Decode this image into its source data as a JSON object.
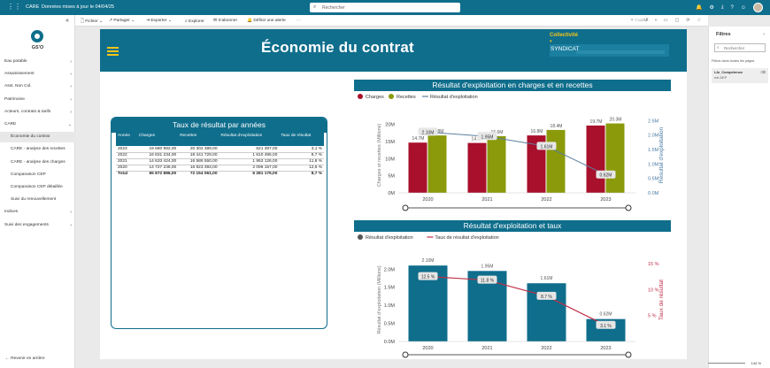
{
  "topbar": {
    "app_name": "CARE",
    "report_title": "Données mises à jour le 04/04/25",
    "search_placeholder": "Rechercher"
  },
  "sidebar": {
    "logo_text": "GS'O",
    "items": [
      {
        "label": "Eau potable",
        "sub": false,
        "chev": "›"
      },
      {
        "label": "Assainissement",
        "sub": false,
        "chev": "›"
      },
      {
        "label": "Asst. Non Col.",
        "sub": false,
        "chev": "›"
      },
      {
        "label": "Patrimoine",
        "sub": false,
        "chev": "›"
      },
      {
        "label": "Acteurs, contrats & tarifs",
        "sub": false,
        "chev": "›"
      },
      {
        "label": "CARE",
        "sub": false,
        "chev": "⌄"
      },
      {
        "label": "Économie du contrat",
        "sub": true,
        "active": true
      },
      {
        "label": "CARE - analyse des recettes",
        "sub": true
      },
      {
        "label": "CARE - analyse des charges",
        "sub": true
      },
      {
        "label": "Comparaison CEP",
        "sub": true
      },
      {
        "label": "Comparaison CEP détaillée",
        "sub": true
      },
      {
        "label": "Suivi du renouvellement",
        "sub": true
      },
      {
        "label": "Indices",
        "sub": false,
        "chev": "›"
      },
      {
        "label": "Suivi des engagements",
        "sub": false,
        "chev": "›"
      }
    ],
    "back_label": "Revenir en arrière"
  },
  "toolbar": {
    "file": "Fichier",
    "share": "Partager",
    "export": "Exporter",
    "explore": "Explorer",
    "subscribe": "S'abonner",
    "alert": "Définir une alerte",
    "more": "···",
    "copilot": "Copilot"
  },
  "banner": {
    "title": "Économie du contrat",
    "collectivite_label": "Collectivité",
    "collectivite_value": "SYNDICAT"
  },
  "table": {
    "title": "Taux de résultat par années",
    "headers": [
      "Année",
      "Charges",
      "Recettes",
      "Résultat d'exploitation",
      "Taux de résultat"
    ],
    "rows": [
      [
        "2023",
        "19 680 992,00",
        "20 302 389,00",
        "621 397,00",
        "3,1 %"
      ],
      [
        "2022",
        "16 831 234,00",
        "18 441 729,00",
        "1 610 495,00",
        "8,7 %"
      ],
      [
        "2021",
        "14 633 424,00",
        "16 586 550,00",
        "1 953 126,00",
        "11,8 %"
      ],
      [
        "2020",
        "14 727 236,00",
        "16 823 393,00",
        "2 096 157,00",
        "12,5 %"
      ]
    ],
    "total": [
      "Total",
      "65 872 886,00",
      "72 154 061,00",
      "6 281 175,00",
      "8,7 %"
    ]
  },
  "filters": {
    "title": "Filtres",
    "search_placeholder": "Rechercher",
    "section_text": "Filtres dans toutes les pages",
    "card_name": "Lib_Competence",
    "card_value": "est AEP"
  },
  "footer": {
    "zoom": "144 %"
  },
  "chart_data": [
    {
      "type": "bar",
      "title": "Résultat d'exploitation en charges et en recettes",
      "categories": [
        "2020",
        "2021",
        "2022",
        "2023"
      ],
      "series": [
        {
          "name": "Charges",
          "values": [
            14.7,
            14.6,
            16.8,
            19.7
          ],
          "color": "#a8102b"
        },
        {
          "name": "Recettes",
          "values": [
            16.8,
            16.6,
            18.4,
            20.3
          ],
          "color": "#8a9a0b"
        },
        {
          "name": "Résultat d'exploitation",
          "values": [
            2.1,
            1.95,
            1.61,
            0.62
          ],
          "color": "#5c7fa0",
          "axis": "right",
          "line": true
        }
      ],
      "data_labels": {
        "Charges": [
          "14.7M",
          "14.6M",
          "16.8M",
          "19.7M"
        ],
        "Recettes": [
          "16.8M",
          "16.6M",
          "18.4M",
          "20.3M"
        ],
        "Résultat d'exploitation": [
          "2.10M",
          "1.95M",
          "1.61M",
          "0.62M"
        ]
      },
      "ylabel": "Charges et recettes (Millions)",
      "y2label": "Résultat d'exploitation",
      "y_ticks": [
        "0M",
        "5M",
        "10M",
        "15M",
        "20M"
      ],
      "y2_ticks": [
        "0.0M",
        "0.5M",
        "1.0M",
        "1.5M",
        "2.0M",
        "2.5M"
      ],
      "ylim": [
        0,
        22
      ],
      "y2lim": [
        0,
        2.6
      ]
    },
    {
      "type": "bar",
      "title": "Résultat d'exploitation et taux",
      "categories": [
        "2020",
        "2021",
        "2022",
        "2023"
      ],
      "series": [
        {
          "name": "Résultat d'exploitation",
          "values": [
            2.1,
            1.95,
            1.61,
            0.62
          ],
          "color": "#0f6e8c"
        },
        {
          "name": "Taux de résultat d'exploitation",
          "values": [
            12.5,
            11.8,
            8.7,
            3.1
          ],
          "color": "#c0304a",
          "axis": "right",
          "line": true
        }
      ],
      "data_labels": {
        "Résultat d'exploitation": [
          "2.10M",
          "1.95M",
          "1.61M",
          "0.62M"
        ],
        "Taux de résultat d'exploitation": [
          "12.5 %",
          "11.8 %",
          "8.7 %",
          "3.1 %"
        ]
      },
      "ylabel": "Résultat d'exploitation (Millions)",
      "y2label": "Taux de résultat",
      "y_ticks": [
        "0.0M",
        "0.5M",
        "1.0M",
        "1.5M",
        "2.0M"
      ],
      "y2_ticks": [
        "5 %",
        "10 %",
        "15 %"
      ],
      "ylim": [
        0,
        2.3
      ],
      "y2lim": [
        0,
        16
      ]
    }
  ]
}
